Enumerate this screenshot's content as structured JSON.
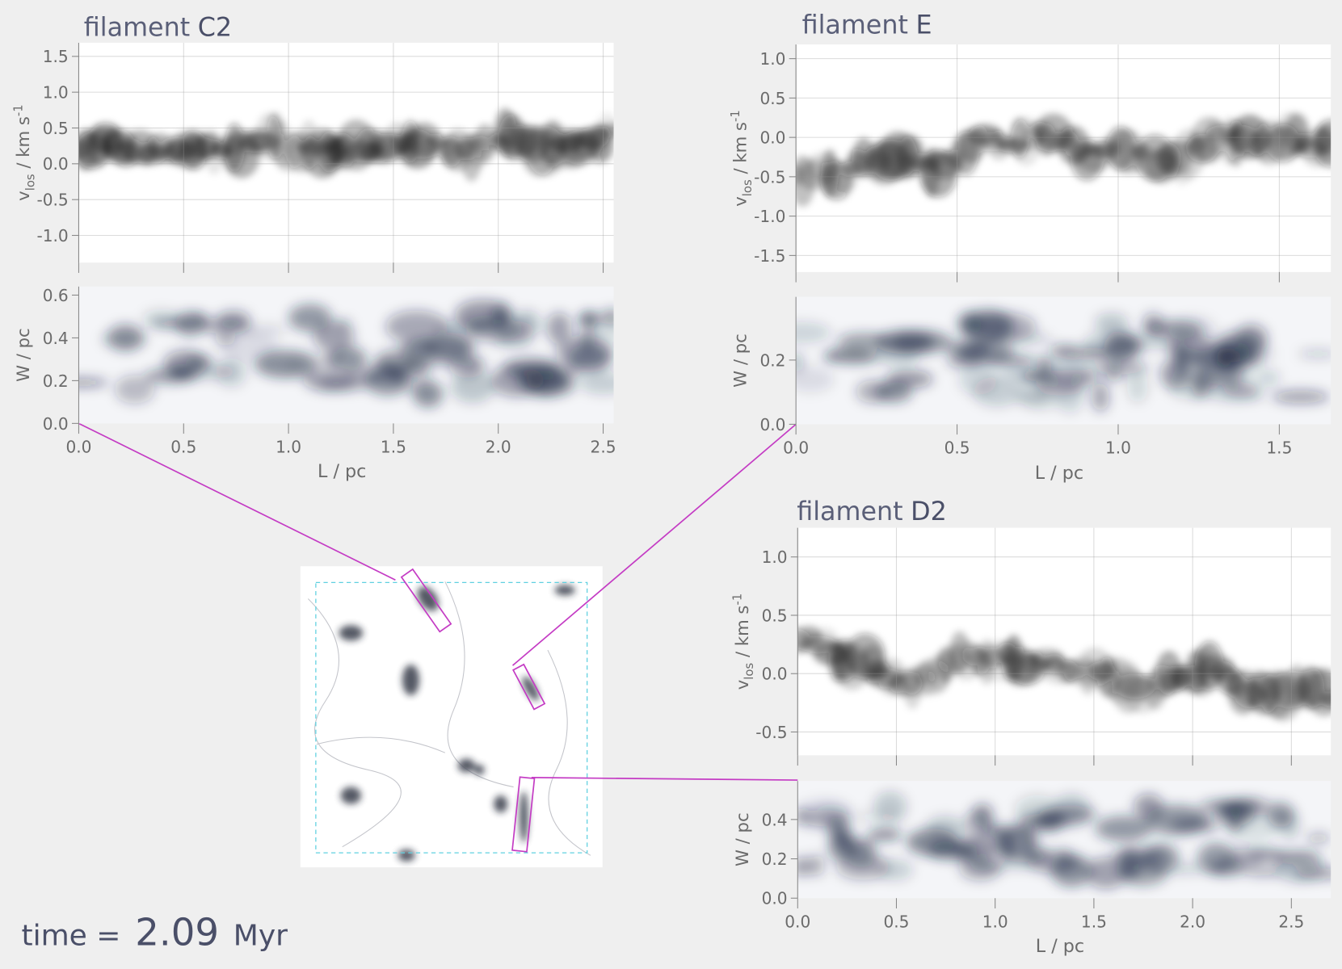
{
  "chart_data": [
    {
      "title": "filament",
      "name": "C2",
      "xlabel": "L / pc",
      "xlim": [
        0,
        2.55
      ],
      "xticks": [
        {
          "value": 0,
          "label": "0.0"
        },
        0.5,
        {
          "value": 1,
          "label": "1.0"
        },
        1.5,
        {
          "value": 2,
          "label": "2.0"
        },
        2.5
      ],
      "panels": [
        {
          "type": "velocity-map",
          "ylabel": {
            "main": "v",
            "sub": "los",
            "unit": " / km s",
            "sup": "-1"
          },
          "ylim": [
            -1.38,
            1.69
          ],
          "yticks": [
            {
              "value": -1,
              "label": "-1.0"
            },
            -0.5,
            {
              "value": 0,
              "label": "0.0"
            },
            0.5,
            {
              "value": 1,
              "label": "1.0"
            },
            1.5
          ],
          "grid": true
        },
        {
          "type": "width-map",
          "ylabel": {
            "main": "W / pc"
          },
          "ylim": [
            0,
            0.64
          ],
          "yticks": [
            {
              "value": 0,
              "label": "0.0"
            },
            0.2,
            0.4,
            0.6
          ],
          "grid": false
        }
      ]
    },
    {
      "title": "filament",
      "name": "E",
      "xlabel": "L / pc",
      "xlim": [
        0,
        1.66
      ],
      "xticks": [
        {
          "value": 0,
          "label": "0.0"
        },
        0.5,
        {
          "value": 1,
          "label": "1.0"
        },
        1.5
      ],
      "panels": [
        {
          "type": "velocity-map",
          "ylabel": {
            "main": "v",
            "sub": "los",
            "unit": " / km s",
            "sup": "-1"
          },
          "ylim": [
            -1.71,
            1.18
          ],
          "yticks": [
            -1.5,
            {
              "value": -1,
              "label": "-1.0"
            },
            -0.5,
            {
              "value": 0,
              "label": "0.0"
            },
            0.5,
            {
              "value": 1,
              "label": "1.0"
            }
          ],
          "grid": true
        },
        {
          "type": "width-map",
          "ylabel": {
            "main": "W / pc"
          },
          "ylim": [
            0,
            0.397
          ],
          "yticks": [
            {
              "value": 0,
              "label": "0.0"
            },
            0.2
          ],
          "grid": false
        }
      ]
    },
    {
      "title": "filament",
      "name": "D2",
      "xlabel": "L / pc",
      "xlim": [
        0,
        2.7
      ],
      "xticks": [
        {
          "value": 0,
          "label": "0.0"
        },
        0.5,
        {
          "value": 1,
          "label": "1.0"
        },
        1.5,
        {
          "value": 2,
          "label": "2.0"
        },
        2.5
      ],
      "panels": [
        {
          "type": "velocity-map",
          "ylabel": {
            "main": "v",
            "sub": "los",
            "unit": " / km s",
            "sup": "-1"
          },
          "ylim": [
            -0.7,
            1.25
          ],
          "yticks": [
            -0.5,
            {
              "value": 0,
              "label": "0.0"
            },
            0.5,
            {
              "value": 1,
              "label": "1.0"
            }
          ],
          "grid": true
        },
        {
          "type": "width-map",
          "ylabel": {
            "main": "W / pc"
          },
          "ylim": [
            0,
            0.596
          ],
          "yticks": [
            {
              "value": 0,
              "label": "0.0"
            },
            0.2,
            0.4
          ],
          "grid": false
        }
      ]
    }
  ],
  "annotation": {
    "label": "time =",
    "value": 2.09,
    "unit": "Myr"
  }
}
